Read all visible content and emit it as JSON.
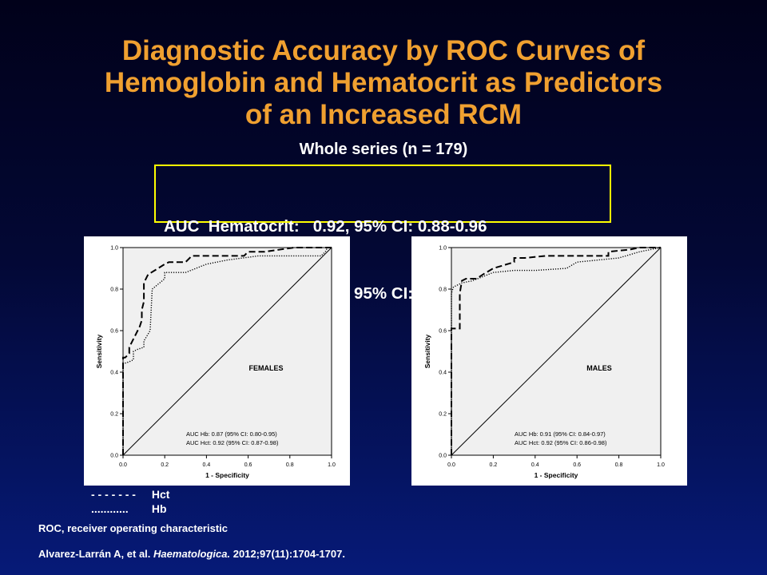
{
  "title": {
    "line1": "Diagnostic Accuracy by ROC Curves of",
    "line2": "Hemoglobin and Hematocrit as Predictors",
    "line3": "of an Increased RCM"
  },
  "subtitle": "Whole series (n = 179)",
  "auc_box": {
    "line1": "AUC  Hematocrit:   0.92, 95% CI: 0.88-0.96",
    "line2": "AUC  Hemoglobin: 0.88, 95% CI: 0.84-0.93"
  },
  "legend": [
    {
      "symbol": "- - - - - - -",
      "label": "Hct"
    },
    {
      "symbol": "............",
      "label": "Hb"
    }
  ],
  "footnotes": {
    "abbrev": "ROC, receiver operating characteristic",
    "citation_authors": "Alvarez-Larrán A, et al.",
    "citation_journal": "Haematologica.",
    "citation_rest": "2012;97(11):1704-1707."
  },
  "colors": {
    "title": "#f0a030",
    "box_border": "#ffff00",
    "plot_bg": "#f0f0f0"
  },
  "chart_data": [
    {
      "type": "line",
      "panel_label": "FEMALES",
      "xlabel": "1 - Specificity",
      "ylabel": "Sensitivity",
      "xlim": [
        0,
        1
      ],
      "ylim": [
        0,
        1
      ],
      "ticks": [
        "0.0",
        "0.2",
        "0.4",
        "0.6",
        "0.8",
        "1.0"
      ],
      "annotation": [
        "AUC Hb: 0.87 (95% CI: 0.80-0.95)",
        "AUC Hct: 0.92 (95% CI: 0.87-0.98)"
      ],
      "series": [
        {
          "name": "Hct",
          "style": "dashed",
          "x": [
            0,
            0,
            0.01,
            0.03,
            0.03,
            0.05,
            0.06,
            0.07,
            0.08,
            0.09,
            0.09,
            0.1,
            0.1,
            0.12,
            0.2,
            0.22,
            0.3,
            0.33,
            0.42,
            0.58,
            0.6,
            0.68,
            0.82,
            1.0
          ],
          "y": [
            0,
            0.47,
            0.47,
            0.49,
            0.52,
            0.56,
            0.58,
            0.6,
            0.62,
            0.65,
            0.7,
            0.74,
            0.83,
            0.87,
            0.92,
            0.93,
            0.93,
            0.96,
            0.96,
            0.96,
            0.98,
            0.98,
            1.0,
            1.0
          ]
        },
        {
          "name": "Hb",
          "style": "dotted",
          "x": [
            0,
            0,
            0.03,
            0.05,
            0.05,
            0.07,
            0.1,
            0.1,
            0.13,
            0.14,
            0.2,
            0.2,
            0.3,
            0.4,
            0.5,
            0.65,
            0.8,
            0.95,
            0.97,
            0.98,
            1.0
          ],
          "y": [
            0,
            0.44,
            0.45,
            0.46,
            0.5,
            0.51,
            0.52,
            0.55,
            0.6,
            0.8,
            0.85,
            0.88,
            0.88,
            0.92,
            0.94,
            0.96,
            0.96,
            0.96,
            0.98,
            1.0,
            1.0
          ]
        },
        {
          "name": "",
          "style": "reference",
          "x": [
            0,
            1
          ],
          "y": [
            0,
            1
          ]
        }
      ]
    },
    {
      "type": "line",
      "panel_label": "MALES",
      "xlabel": "1 - Specificity",
      "ylabel": "Sensitivity",
      "xlim": [
        0,
        1
      ],
      "ylim": [
        0,
        1
      ],
      "ticks": [
        "0.0",
        "0.2",
        "0.4",
        "0.6",
        "0.8",
        "1.0"
      ],
      "annotation": [
        "AUC Hb: 0.91 (95% CI: 0.84-0.97)",
        "AUC Hct: 0.92 (95% CI: 0.86-0.98)"
      ],
      "series": [
        {
          "name": "Hct",
          "style": "dashed",
          "x": [
            0,
            0,
            0.04,
            0.04,
            0.05,
            0.07,
            0.12,
            0.15,
            0.2,
            0.3,
            0.3,
            0.35,
            0.45,
            0.65,
            0.75,
            0.75,
            0.85,
            0.9,
            1.0
          ],
          "y": [
            0,
            0.61,
            0.61,
            0.78,
            0.84,
            0.85,
            0.85,
            0.87,
            0.9,
            0.93,
            0.95,
            0.95,
            0.96,
            0.96,
            0.96,
            0.98,
            0.99,
            1.0,
            1.0
          ]
        },
        {
          "name": "Hb",
          "style": "dotted",
          "x": [
            0,
            0,
            0.01,
            0.03,
            0.05,
            0.1,
            0.15,
            0.2,
            0.3,
            0.4,
            0.55,
            0.6,
            0.8,
            0.9,
            1.0
          ],
          "y": [
            0,
            0.78,
            0.81,
            0.82,
            0.83,
            0.84,
            0.86,
            0.88,
            0.89,
            0.89,
            0.9,
            0.93,
            0.95,
            0.98,
            1.0
          ]
        },
        {
          "name": "",
          "style": "reference",
          "x": [
            0,
            1
          ],
          "y": [
            0,
            1
          ]
        }
      ]
    }
  ]
}
